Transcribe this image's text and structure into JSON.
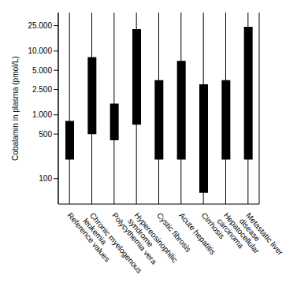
{
  "chart_data": {
    "type": "range_bar",
    "y_label": "Cobalamin in plasma (pmol/L)",
    "categories": [
      "Reference values",
      "Chronic myelogenous leukemia",
      "Polycythemia vera",
      "Hypereosinophilic syndrome",
      "Cystic fibrosis",
      "Acute hepatitis",
      "Cirrhosis",
      "Hepatocellular carcinoma",
      "Metastatic liver disease"
    ],
    "low": [
      200,
      500,
      400,
      700,
      200,
      200,
      60,
      200,
      200
    ],
    "high": [
      800,
      8000,
      1500,
      22000,
      3500,
      7000,
      3000,
      3500,
      24000
    ],
    "color": "#000000",
    "log": "y",
    "grid": true,
    "ylim": [
      40,
      40000
    ],
    "yticks": [
      100,
      500,
      {
        "value": 1000,
        "label": "1.000"
      },
      {
        "value": 2500,
        "label": "2.500"
      },
      {
        "value": 5000,
        "label": "5.000"
      },
      {
        "value": 10000,
        "label": "10.000"
      },
      {
        "value": 25000,
        "label": "25.000"
      }
    ]
  }
}
